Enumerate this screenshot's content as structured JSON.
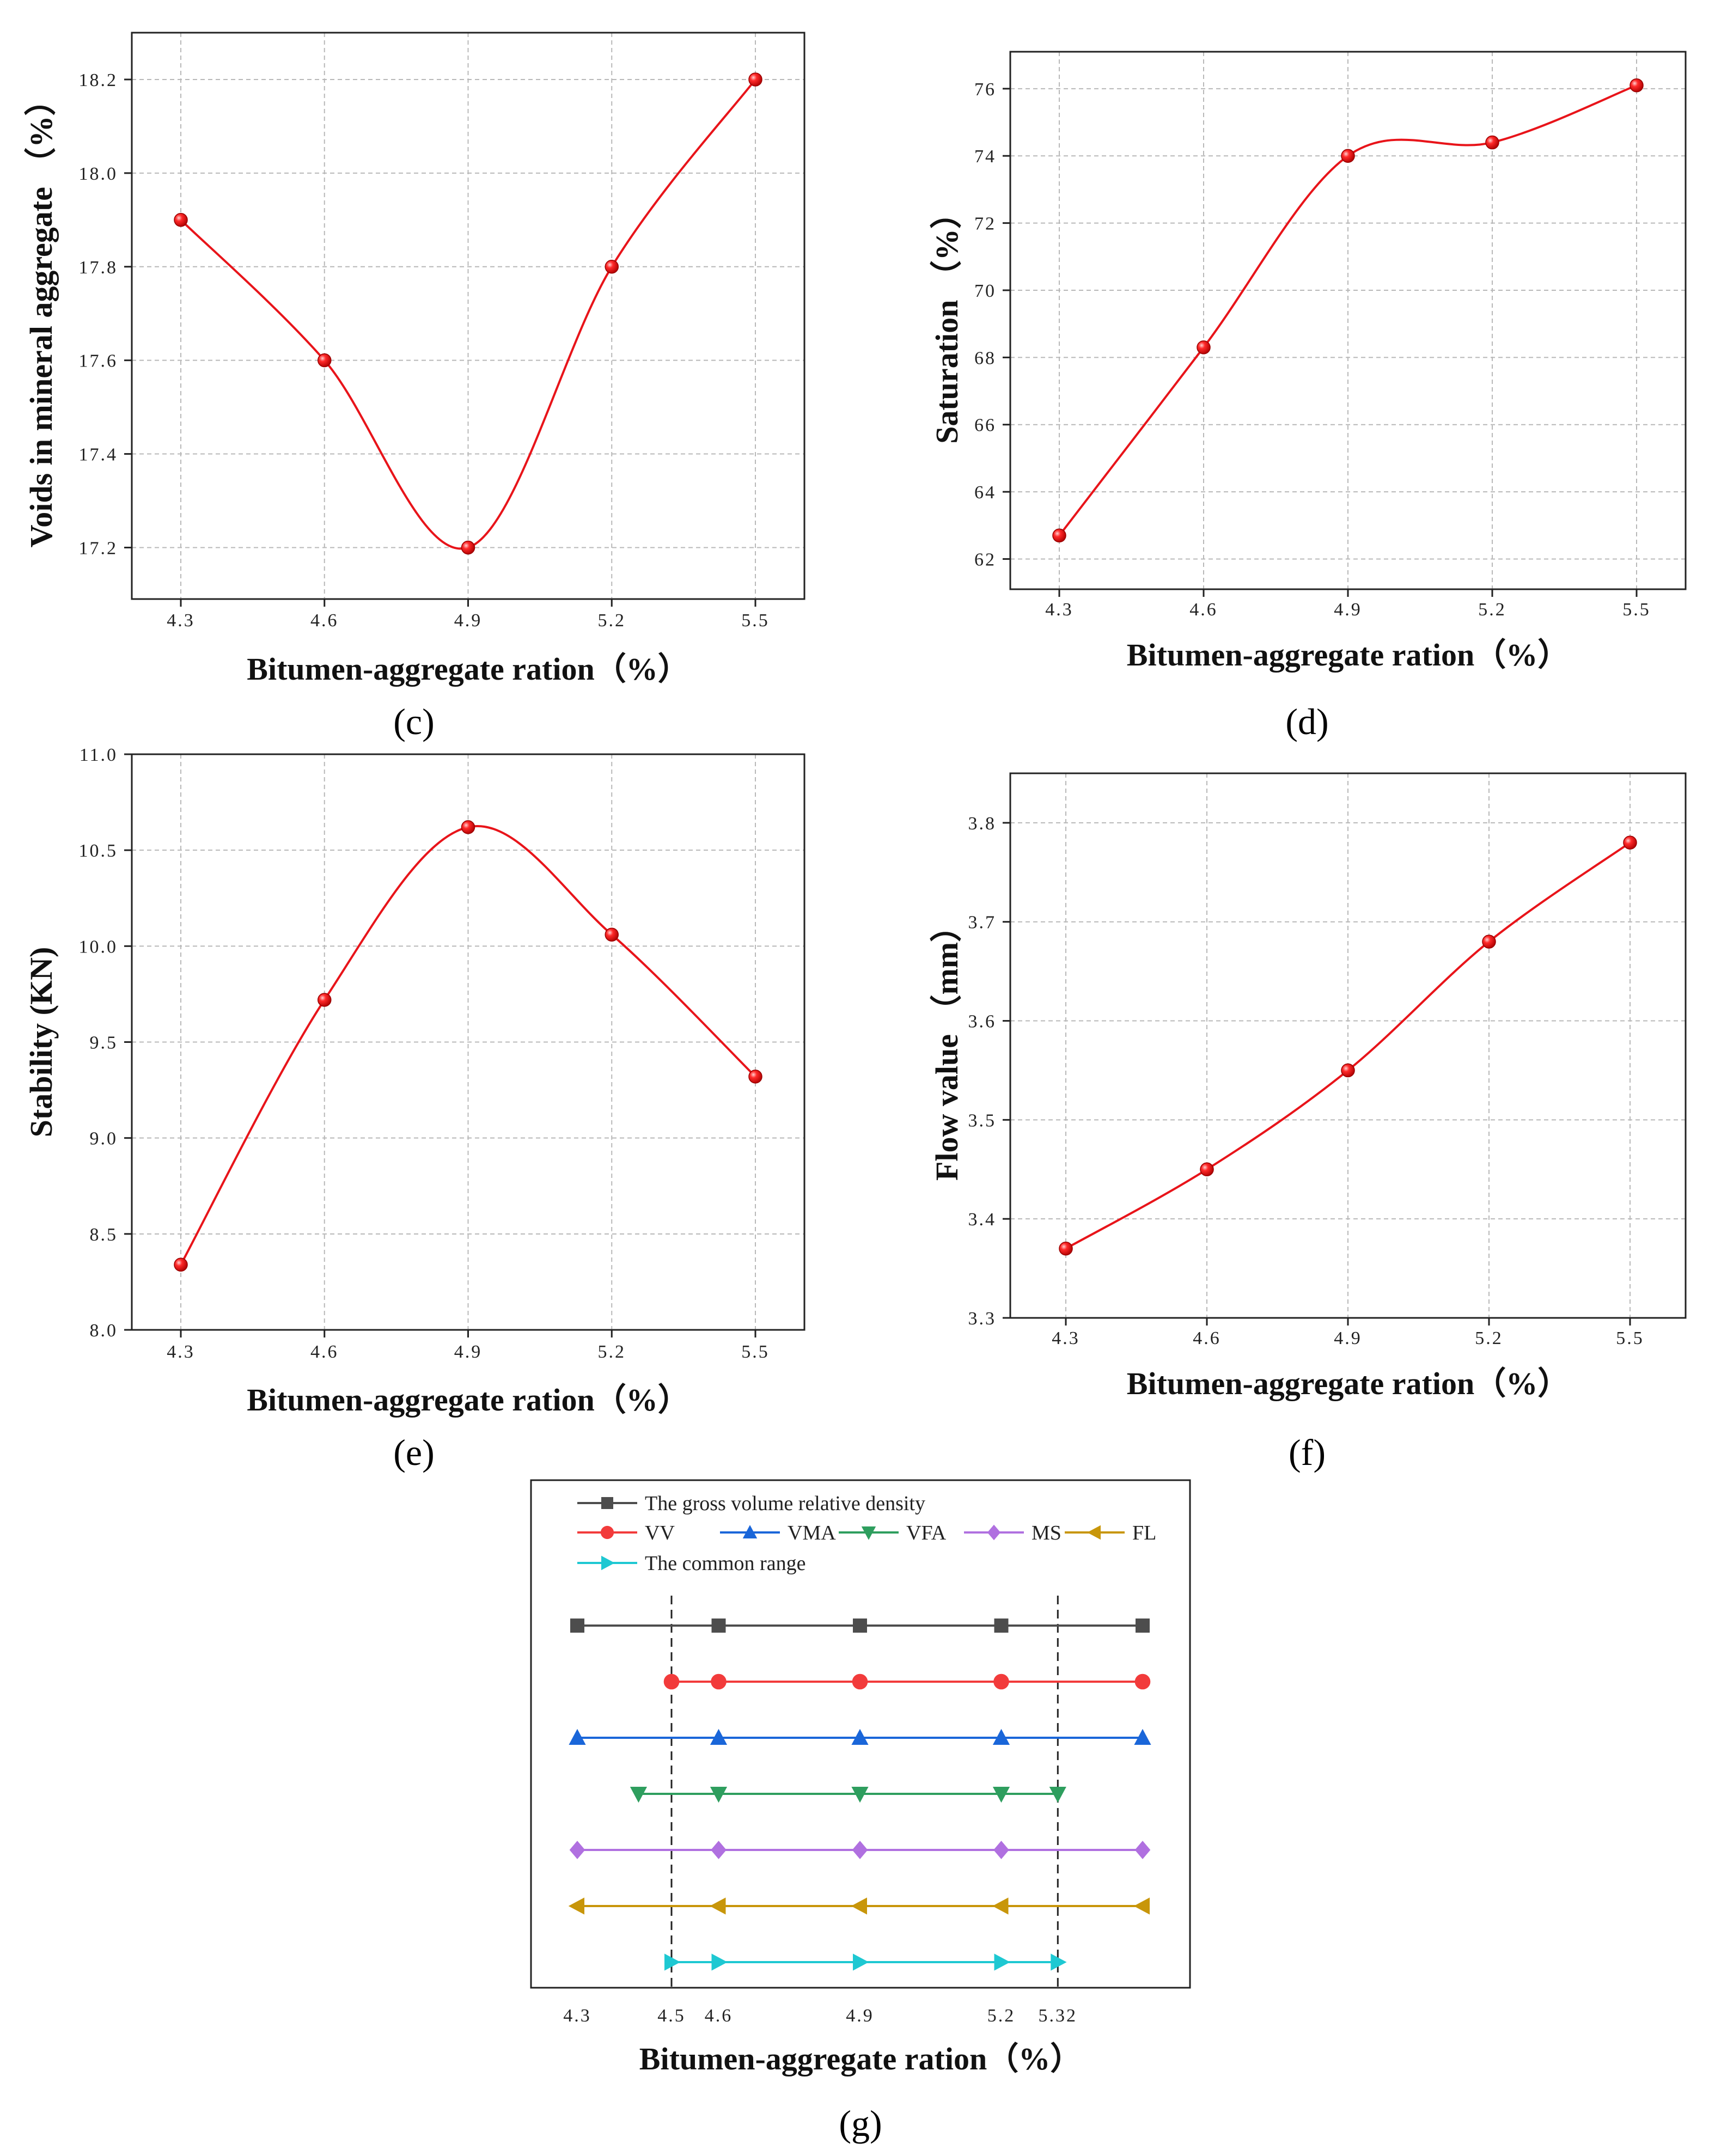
{
  "chart_data": [
    {
      "id": "c",
      "type": "line",
      "panel_label": "(c)",
      "categories": [
        "4.3",
        "4.6",
        "4.9",
        "5.2",
        "5.5"
      ],
      "x": [
        4.3,
        4.6,
        4.9,
        5.2,
        5.5
      ],
      "values": [
        17.9,
        17.6,
        17.2,
        17.8,
        18.2
      ],
      "xlabel": "Bitumen-aggregate ration（%）",
      "ylabel": "Voids in mineral aggregate （%）",
      "ylim": [
        17.09,
        18.3
      ],
      "yticks": [
        17.2,
        17.4,
        17.6,
        17.8,
        18.0,
        18.2
      ],
      "ytick_labels": [
        "17.2",
        "17.4",
        "17.6",
        "17.8",
        "18.0",
        "18.2"
      ],
      "grid": true,
      "color": "#e8141a"
    },
    {
      "id": "d",
      "type": "line",
      "panel_label": "(d)",
      "categories": [
        "4.3",
        "4.6",
        "4.9",
        "5.2",
        "5.5"
      ],
      "x": [
        4.3,
        4.6,
        4.9,
        5.2,
        5.5
      ],
      "values": [
        62.7,
        68.3,
        74.0,
        74.4,
        76.1
      ],
      "xlabel": "Bitumen-aggregate ration（%）",
      "ylabel": "Saturation （%）",
      "ylim": [
        61.1,
        77.1
      ],
      "yticks": [
        62,
        64,
        66,
        68,
        70,
        72,
        74,
        76
      ],
      "ytick_labels": [
        "62",
        "64",
        "66",
        "68",
        "70",
        "72",
        "74",
        "76"
      ],
      "grid": true,
      "color": "#e8141a"
    },
    {
      "id": "e",
      "type": "line",
      "panel_label": "(e)",
      "categories": [
        "4.3",
        "4.6",
        "4.9",
        "5.2",
        "5.5"
      ],
      "x": [
        4.3,
        4.6,
        4.9,
        5.2,
        5.5
      ],
      "values": [
        8.34,
        9.72,
        10.62,
        10.06,
        9.32
      ],
      "xlabel": "Bitumen-aggregate ration（%）",
      "ylabel": "Stability (KN)",
      "ylim": [
        8.0,
        11.0
      ],
      "yticks": [
        8.0,
        8.5,
        9.0,
        9.5,
        10.0,
        10.5,
        11.0
      ],
      "ytick_labels": [
        "8.0",
        "8.5",
        "9.0",
        "9.5",
        "10.0",
        "10.5",
        "11.0"
      ],
      "grid": true,
      "color": "#e8141a"
    },
    {
      "id": "f",
      "type": "line",
      "panel_label": "(f)",
      "categories": [
        "4.3",
        "4.6",
        "4.9",
        "5.2",
        "5.5"
      ],
      "x": [
        4.3,
        4.6,
        4.9,
        5.2,
        5.5
      ],
      "values": [
        3.37,
        3.45,
        3.55,
        3.68,
        3.78
      ],
      "xlabel": "Bitumen-aggregate ration（%）",
      "ylabel": "Flow value （mm）",
      "ylim": [
        3.3,
        3.85
      ],
      "yticks": [
        3.3,
        3.4,
        3.5,
        3.6,
        3.7,
        3.8
      ],
      "ytick_labels": [
        "3.3",
        "3.4",
        "3.5",
        "3.6",
        "3.7",
        "3.8"
      ],
      "grid": true,
      "color": "#e8141a"
    },
    {
      "id": "g",
      "type": "line",
      "panel_label": "(g)",
      "xlabel": "Bitumen-aggregate ration（%）",
      "xticks": [
        4.3,
        4.5,
        4.6,
        4.9,
        5.2,
        5.32
      ],
      "xtick_labels": [
        "4.3",
        "4.5",
        "4.6",
        "4.9",
        "5.2",
        "5.32"
      ],
      "xlim": [
        4.2,
        5.6
      ],
      "reference_lines": [
        4.5,
        5.32
      ],
      "series": [
        {
          "name": "The gross volume relative density",
          "marker": "square",
          "color": "#4d4d4d",
          "x": [
            4.3,
            4.6,
            4.9,
            5.2,
            5.5
          ]
        },
        {
          "name": "VV",
          "marker": "circle",
          "color": "#f23b3b",
          "x": [
            4.5,
            4.6,
            4.9,
            5.2,
            5.5
          ]
        },
        {
          "name": "VMA",
          "marker": "triangle-up",
          "color": "#1a66d9",
          "x": [
            4.3,
            4.6,
            4.9,
            5.2,
            5.5
          ]
        },
        {
          "name": "VFA",
          "marker": "triangle-down",
          "color": "#2e9e5e",
          "x": [
            4.43,
            4.6,
            4.9,
            5.2,
            5.32
          ]
        },
        {
          "name": "MS",
          "marker": "diamond",
          "color": "#b070e0",
          "x": [
            4.3,
            4.6,
            4.9,
            5.2,
            5.5
          ]
        },
        {
          "name": "FL",
          "marker": "triangle-left",
          "color": "#c8960a",
          "x": [
            4.3,
            4.6,
            4.9,
            5.2,
            5.5
          ]
        },
        {
          "name": "The common range",
          "marker": "triangle-right",
          "color": "#1ec8d2",
          "x": [
            4.5,
            4.6,
            4.9,
            5.2,
            5.32
          ]
        }
      ]
    }
  ]
}
